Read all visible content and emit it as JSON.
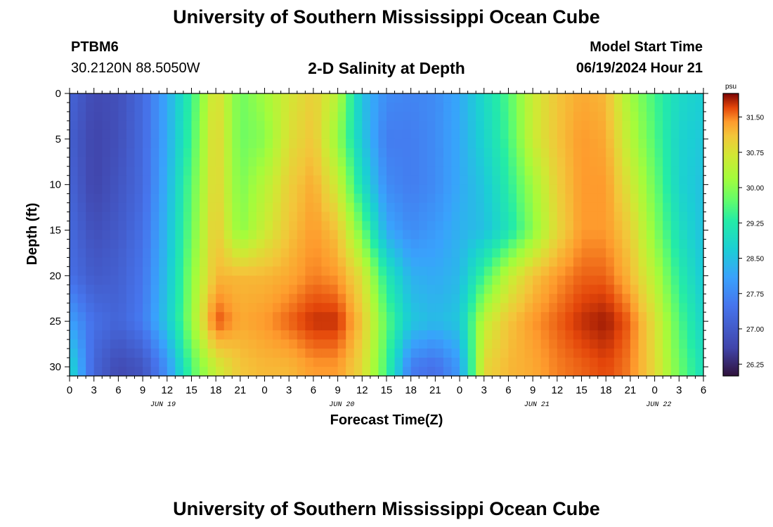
{
  "header": {
    "title": "University of Southern Mississippi Ocean Cube",
    "station": "PTBM6",
    "coords": "30.2120N  88.5050W",
    "start_label": "Model Start Time",
    "start_value": "06/19/2024 Hour 21",
    "footer_title": "University of Southern Mississippi Ocean Cube"
  },
  "chart_data": {
    "type": "heatmap",
    "title": "2-D Salinity at Depth",
    "xlabel": "Forecast Time(Z)",
    "ylabel": "Depth (ft)",
    "x_hours_range": [
      0,
      78
    ],
    "y_range_ft": [
      0,
      31
    ],
    "y_ticks": [
      0,
      5,
      10,
      15,
      20,
      25,
      30
    ],
    "x_tick_labels": [
      "0",
      "3",
      "6",
      "9",
      "12",
      "15",
      "18",
      "21",
      "0",
      "3",
      "6",
      "9",
      "12",
      "15",
      "18",
      "21",
      "0",
      "3",
      "6",
      "9",
      "12",
      "15",
      "18",
      "21",
      "0",
      "3",
      "6"
    ],
    "date_labels": [
      {
        "text": "JUN 19",
        "hour": 11.5
      },
      {
        "text": "JUN 20",
        "hour": 33.5
      },
      {
        "text": "JUN 21",
        "hour": 57.5
      },
      {
        "text": "JUN 22",
        "hour": 72.5
      }
    ],
    "colorbar": {
      "unit": "psu",
      "range": [
        26.0,
        32.0
      ],
      "ticks": [
        "26.25",
        "27.00",
        "27.75",
        "28.50",
        "29.25",
        "30.00",
        "30.75",
        "31.50"
      ]
    },
    "salinity_psu": {
      "time_hours": [
        0,
        3,
        6,
        9,
        12,
        15,
        18,
        21,
        24,
        27,
        30,
        33,
        36,
        39,
        42,
        45,
        48,
        51,
        54,
        57,
        60,
        63,
        66,
        69,
        72,
        75,
        78
      ],
      "depth_ft": [
        0,
        5,
        10,
        15,
        20,
        25,
        30
      ],
      "rows": [
        [
          27.2,
          26.7,
          26.8,
          27.3,
          28.2,
          29.4,
          30.9,
          29.8,
          30.2,
          30.7,
          31.0,
          30.4,
          28.5,
          27.8,
          27.7,
          27.8,
          28.2,
          28.9,
          29.6,
          30.6,
          31.1,
          31.3,
          31.2,
          30.2,
          29.5,
          28.9,
          28.7
        ],
        [
          27.1,
          26.6,
          26.8,
          27.3,
          28.2,
          29.5,
          31.0,
          29.8,
          30.0,
          30.8,
          31.1,
          30.1,
          28.6,
          27.6,
          27.6,
          27.8,
          28.2,
          28.8,
          29.5,
          30.6,
          31.1,
          31.4,
          31.3,
          30.4,
          29.6,
          28.8,
          28.6
        ],
        [
          27.2,
          26.6,
          26.9,
          27.3,
          28.3,
          29.7,
          31.0,
          29.9,
          30.4,
          31.0,
          31.3,
          30.6,
          29.0,
          27.8,
          27.6,
          27.8,
          28.2,
          28.6,
          29.3,
          30.2,
          31.0,
          31.4,
          31.4,
          30.7,
          29.8,
          28.8,
          28.5
        ],
        [
          27.3,
          26.8,
          27.0,
          27.4,
          28.4,
          29.8,
          31.1,
          30.0,
          30.6,
          31.1,
          31.4,
          31.1,
          29.8,
          28.2,
          27.8,
          28.0,
          28.3,
          28.5,
          29.1,
          30.0,
          30.9,
          31.4,
          31.4,
          31.0,
          30.0,
          29.0,
          28.5
        ],
        [
          27.4,
          27.0,
          27.1,
          27.5,
          28.5,
          30.0,
          31.2,
          31.2,
          31.2,
          31.3,
          31.5,
          31.4,
          30.8,
          29.2,
          28.3,
          28.2,
          28.4,
          29.5,
          30.5,
          31.1,
          31.4,
          31.6,
          31.6,
          31.2,
          30.4,
          29.3,
          28.6
        ],
        [
          28.1,
          27.4,
          27.2,
          27.6,
          28.6,
          30.1,
          31.7,
          31.3,
          31.4,
          31.6,
          31.8,
          31.8,
          31.1,
          29.7,
          28.6,
          28.4,
          28.6,
          30.5,
          31.1,
          31.4,
          31.6,
          31.8,
          31.9,
          31.6,
          30.8,
          29.6,
          28.8
        ],
        [
          28.9,
          27.2,
          26.7,
          26.9,
          27.9,
          29.6,
          30.6,
          31.1,
          31.2,
          31.2,
          31.4,
          31.4,
          30.9,
          29.5,
          27.6,
          27.4,
          28.0,
          30.9,
          31.2,
          31.3,
          31.5,
          31.6,
          31.7,
          31.5,
          30.9,
          29.8,
          29.0
        ]
      ]
    }
  }
}
